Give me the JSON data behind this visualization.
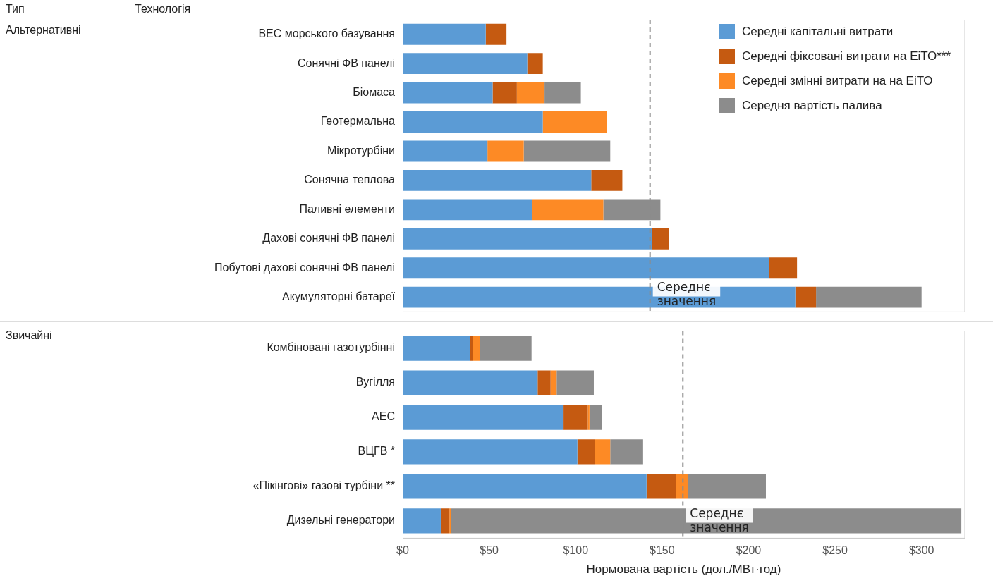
{
  "chart_data": [
    {
      "type": "bar",
      "orientation": "horizontal",
      "stacked": true,
      "ylabel": "Альтернативні",
      "annotations": [
        "Тип",
        "Технологія"
      ],
      "legend": "top right",
      "tick_labels": "y",
      "categories": [
        "ВЕС морського базування",
        "Сонячні ФВ панелі",
        "Біомаса",
        "Геотермальна",
        "Мікротурбіни",
        "Сонячна теплова",
        "Паливні елементи",
        "Дахові сонячні ФВ панелі",
        "Побутові дахові сонячні ФВ панелі",
        "Акумуляторні батареї"
      ],
      "series": [
        {
          "name": "Середні капітальні витрати",
          "color": "#5b9bd5",
          "values": [
            48,
            72,
            52,
            81,
            49,
            109,
            75,
            144,
            212,
            227
          ]
        },
        {
          "name": "Середні фіксовані витрати на ЕіТО***",
          "color": "#c55a11",
          "values": [
            12,
            9,
            14,
            null,
            null,
            18,
            null,
            10,
            16,
            12
          ]
        },
        {
          "name": "Середні змінні витрати на на ЕіТО",
          "color": "#fd8a25",
          "values": [
            null,
            null,
            16,
            37,
            21,
            null,
            41,
            null,
            null,
            null
          ]
        },
        {
          "name": "Середня вартість палива",
          "color": "#8c8c8c",
          "values": [
            null,
            null,
            21,
            null,
            50,
            null,
            33,
            null,
            null,
            61
          ]
        }
      ],
      "xlim": [
        0,
        325
      ],
      "ref_lines": [
        {
          "axis": "x",
          "value": 143,
          "label": "Середнє значення",
          "color": "#8c8c8c",
          "line_style": "dashed"
        }
      ]
    },
    {
      "type": "bar",
      "orientation": "horizontal",
      "stacked": true,
      "ylabel": "Звичайні",
      "xlabel": "Нормована вартість (дол./МВт·год)",
      "categories": [
        "Комбіновані газотурбінні",
        "Вугілля",
        "АЕС",
        "ВЦГВ *",
        "«Пікінгові» газові турбіни **",
        "Дизельні генератори"
      ],
      "series": [
        {
          "color": "#5b9bd5",
          "values": [
            39,
            78,
            93,
            101,
            141,
            22
          ]
        },
        {
          "color": "#c55a11",
          "values": [
            1.5,
            7.5,
            14,
            10,
            17,
            5
          ]
        },
        {
          "color": "#fd8a25",
          "values": [
            4,
            3.5,
            1,
            9,
            7,
            1
          ]
        },
        {
          "color": "#8c8c8c",
          "values": [
            30,
            21.5,
            7,
            19,
            45,
            295
          ]
        }
      ],
      "xlim": [
        0,
        325
      ],
      "xticks": [
        {
          "value": 0,
          "label": "$0"
        },
        {
          "value": 50,
          "label": "$50"
        },
        {
          "value": 100,
          "label": "$100"
        },
        {
          "value": 150,
          "label": "$150"
        },
        {
          "value": 200,
          "label": "$200"
        },
        {
          "value": 250,
          "label": "$250"
        },
        {
          "value": 300,
          "label": "$300"
        }
      ],
      "ref_lines": [
        {
          "axis": "x",
          "value": 162,
          "label": "Середнє значення",
          "color": "#8c8c8c",
          "line_style": "dashed"
        }
      ]
    }
  ]
}
